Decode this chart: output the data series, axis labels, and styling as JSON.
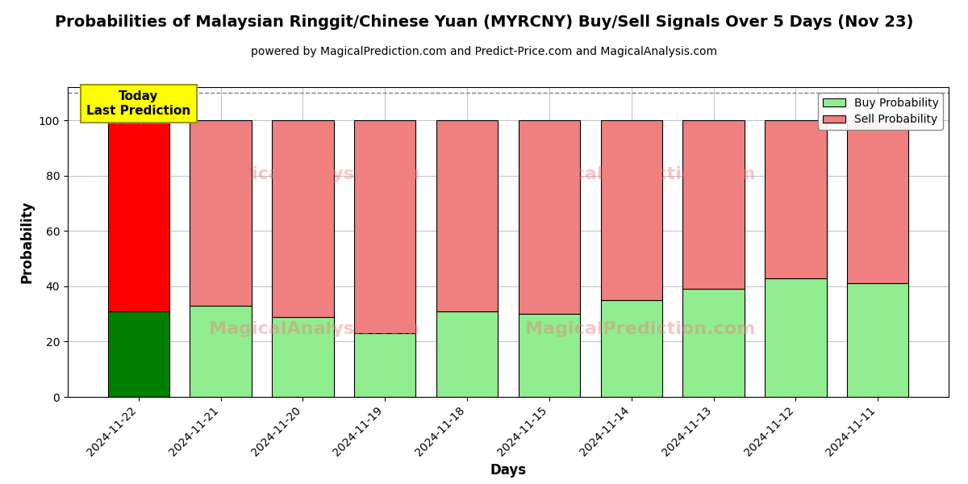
{
  "title": "Probabilities of Malaysian Ringgit/Chinese Yuan (MYRCNY) Buy/Sell Signals Over 5 Days (Nov 23)",
  "subtitle": "powered by MagicalPrediction.com and Predict-Price.com and MagicalAnalysis.com",
  "xlabel": "Days",
  "ylabel": "Probability",
  "categories": [
    "2024-11-22",
    "2024-11-21",
    "2024-11-20",
    "2024-11-19",
    "2024-11-18",
    "2024-11-15",
    "2024-11-14",
    "2024-11-13",
    "2024-11-12",
    "2024-11-11"
  ],
  "buy_values": [
    31,
    33,
    29,
    23,
    31,
    30,
    35,
    39,
    43,
    41
  ],
  "sell_values": [
    69,
    67,
    71,
    77,
    69,
    70,
    65,
    61,
    57,
    59
  ],
  "today_buy_color": "#008000",
  "today_sell_color": "#FF0000",
  "buy_color": "#90EE90",
  "sell_color": "#F08080",
  "bar_edge_color": "#000000",
  "ylim": [
    0,
    112
  ],
  "yticks": [
    0,
    20,
    40,
    60,
    80,
    100
  ],
  "dashed_line_y": 110,
  "annotation_text": "Today\nLast Prediction",
  "annotation_bg": "#FFFF00",
  "legend_buy_label": "Buy Probability",
  "legend_sell_label": "Sell Probability",
  "title_fontsize": 14,
  "subtitle_fontsize": 10,
  "axis_label_fontsize": 12,
  "tick_fontsize": 10,
  "bar_width": 0.75
}
